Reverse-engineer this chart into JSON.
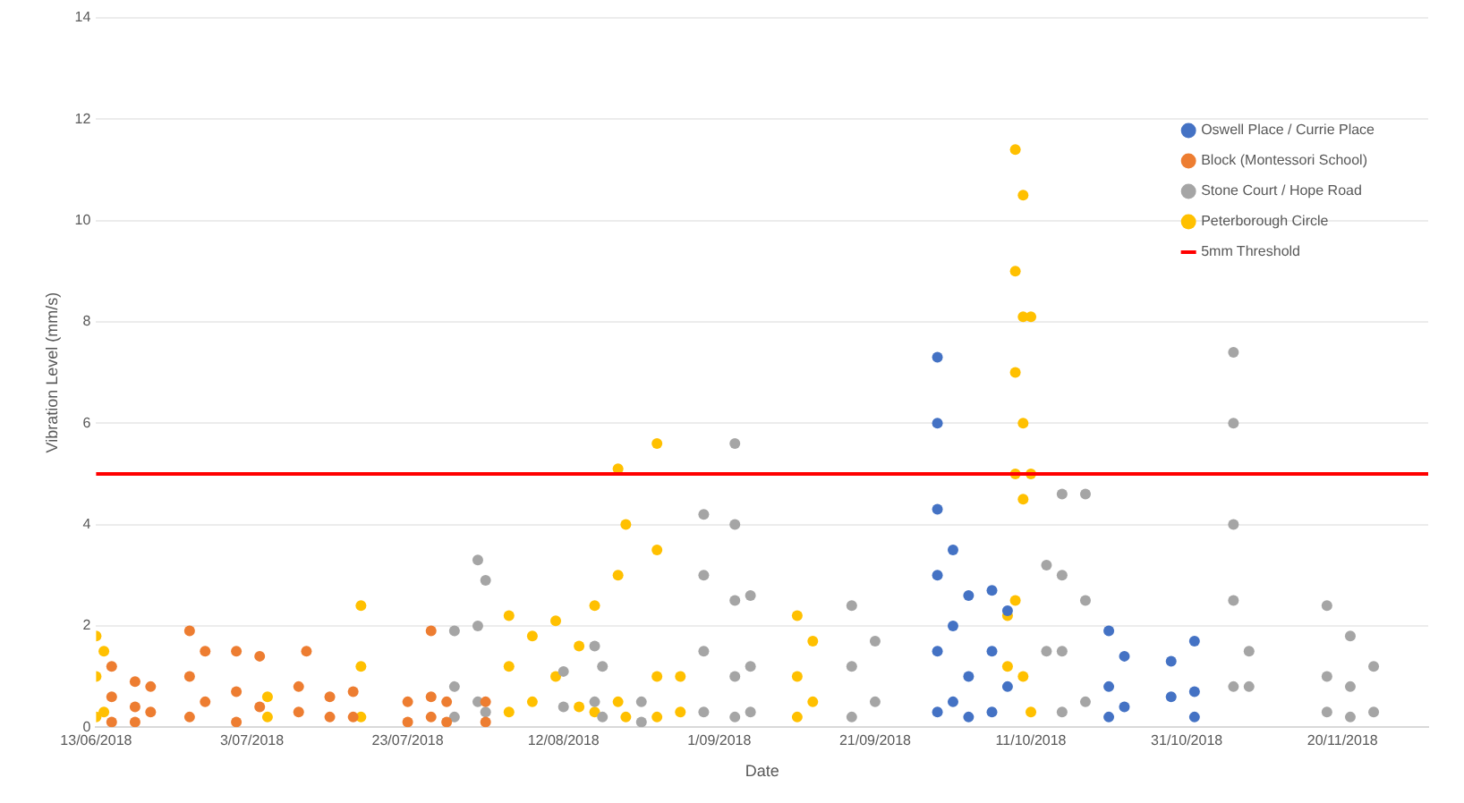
{
  "chart_data": {
    "type": "scatter",
    "xlabel": "Date",
    "ylabel": "Vibration Level (mm/s)",
    "legend": "top right",
    "marker": "circle",
    "grid": "y",
    "xlim": [
      "2018-06-13",
      "2018-12-01"
    ],
    "xticks": [
      {
        "value": "2018-06-13",
        "label": "13/06/2018"
      },
      {
        "value": "2018-07-03",
        "label": "3/07/2018"
      },
      {
        "value": "2018-07-23",
        "label": "23/07/2018"
      },
      {
        "value": "2018-08-12",
        "label": "12/08/2018"
      },
      {
        "value": "2018-09-01",
        "label": "1/09/2018"
      },
      {
        "value": "2018-09-21",
        "label": "21/09/2018"
      },
      {
        "value": "2018-10-11",
        "label": "11/10/2018"
      },
      {
        "value": "2018-10-31",
        "label": "31/10/2018"
      },
      {
        "value": "2018-11-20",
        "label": "20/11/2018"
      }
    ],
    "ylim": [
      0,
      14
    ],
    "yticks": [
      0,
      2,
      4,
      6,
      8,
      10,
      12,
      14
    ],
    "ref_lines": [
      {
        "axis": "y",
        "value": 5,
        "label": "5mm Threshold",
        "color": "#ff0000"
      }
    ],
    "series": [
      {
        "name": "Oswell Place / Currie Place",
        "color": "#4472c4",
        "x": [
          "2018-09-29",
          "2018-09-29",
          "2018-09-29",
          "2018-09-29",
          "2018-09-29",
          "2018-09-29",
          "2018-10-01",
          "2018-10-01",
          "2018-10-01",
          "2018-10-03",
          "2018-10-03",
          "2018-10-03",
          "2018-10-06",
          "2018-10-06",
          "2018-10-06",
          "2018-10-08",
          "2018-10-08",
          "2018-10-21",
          "2018-10-21",
          "2018-10-21",
          "2018-10-23",
          "2018-10-23",
          "2018-10-29",
          "2018-10-29",
          "2018-11-01",
          "2018-11-01",
          "2018-11-01"
        ],
        "values": [
          7.3,
          6,
          4.3,
          3,
          1.5,
          0.3,
          3.5,
          2,
          0.5,
          2.6,
          1,
          0.2,
          2.7,
          1.5,
          0.3,
          2.3,
          0.8,
          1.9,
          0.8,
          0.2,
          1.4,
          0.4,
          1.3,
          0.6,
          1.7,
          0.7,
          0.2
        ]
      },
      {
        "name": "Block (Montessori School)",
        "color": "#ed7d31",
        "x": [
          "2018-06-15",
          "2018-06-15",
          "2018-06-15",
          "2018-06-18",
          "2018-06-18",
          "2018-06-18",
          "2018-06-20",
          "2018-06-20",
          "2018-06-25",
          "2018-06-25",
          "2018-06-25",
          "2018-06-27",
          "2018-06-27",
          "2018-07-01",
          "2018-07-01",
          "2018-07-01",
          "2018-07-04",
          "2018-07-04",
          "2018-07-09",
          "2018-07-09",
          "2018-07-10",
          "2018-07-13",
          "2018-07-13",
          "2018-07-16",
          "2018-07-16",
          "2018-07-23",
          "2018-07-23",
          "2018-07-26",
          "2018-07-26",
          "2018-07-26",
          "2018-07-28",
          "2018-07-28",
          "2018-08-02",
          "2018-08-02"
        ],
        "values": [
          1.2,
          0.6,
          0.1,
          0.9,
          0.4,
          0.1,
          0.8,
          0.3,
          1.9,
          1,
          0.2,
          1.5,
          0.5,
          1.5,
          0.7,
          0.1,
          1.4,
          0.4,
          0.8,
          0.3,
          1.5,
          0.6,
          0.2,
          0.7,
          0.2,
          0.5,
          0.1,
          1.9,
          0.6,
          0.2,
          0.5,
          0.1,
          0.5,
          0.1
        ]
      },
      {
        "name": "Stone Court / Hope Road",
        "color": "#a5a5a5",
        "x": [
          "2018-07-29",
          "2018-07-29",
          "2018-07-29",
          "2018-08-01",
          "2018-08-01",
          "2018-08-01",
          "2018-08-02",
          "2018-08-02",
          "2018-08-12",
          "2018-08-12",
          "2018-08-16",
          "2018-08-16",
          "2018-08-17",
          "2018-08-17",
          "2018-08-22",
          "2018-08-22",
          "2018-08-30",
          "2018-08-30",
          "2018-08-30",
          "2018-08-30",
          "2018-09-03",
          "2018-09-03",
          "2018-09-03",
          "2018-09-03",
          "2018-09-03",
          "2018-09-05",
          "2018-09-05",
          "2018-09-05",
          "2018-09-18",
          "2018-09-18",
          "2018-09-18",
          "2018-09-21",
          "2018-09-21",
          "2018-10-13",
          "2018-10-13",
          "2018-10-15",
          "2018-10-15",
          "2018-10-15",
          "2018-10-15",
          "2018-10-18",
          "2018-10-18",
          "2018-10-18",
          "2018-11-06",
          "2018-11-06",
          "2018-11-06",
          "2018-11-06",
          "2018-11-06",
          "2018-11-08",
          "2018-11-08",
          "2018-11-18",
          "2018-11-18",
          "2018-11-18",
          "2018-11-21",
          "2018-11-21",
          "2018-11-21",
          "2018-11-24",
          "2018-11-24"
        ],
        "values": [
          1.9,
          0.8,
          0.2,
          3.3,
          2,
          0.5,
          2.9,
          0.3,
          1.1,
          0.4,
          1.6,
          0.5,
          1.2,
          0.2,
          0.5,
          0.1,
          4.2,
          3,
          1.5,
          0.3,
          5.6,
          4,
          2.5,
          1,
          0.2,
          2.6,
          1.2,
          0.3,
          2.4,
          1.2,
          0.2,
          1.7,
          0.5,
          3.2,
          1.5,
          4.6,
          3,
          1.5,
          0.3,
          4.6,
          2.5,
          0.5,
          7.4,
          6,
          4,
          2.5,
          0.8,
          1.5,
          0.8,
          2.4,
          1,
          0.3,
          1.8,
          0.8,
          0.2,
          1.2,
          0.3
        ]
      },
      {
        "name": "Peterborough Circle",
        "color": "#ffc000",
        "x": [
          "2018-06-13",
          "2018-06-13",
          "2018-06-13",
          "2018-06-14",
          "2018-06-14",
          "2018-07-05",
          "2018-07-05",
          "2018-07-17",
          "2018-07-17",
          "2018-07-17",
          "2018-08-05",
          "2018-08-05",
          "2018-08-05",
          "2018-08-08",
          "2018-08-08",
          "2018-08-11",
          "2018-08-11",
          "2018-08-14",
          "2018-08-14",
          "2018-08-16",
          "2018-08-16",
          "2018-08-19",
          "2018-08-19",
          "2018-08-19",
          "2018-08-20",
          "2018-08-20",
          "2018-08-24",
          "2018-08-24",
          "2018-08-24",
          "2018-08-24",
          "2018-08-27",
          "2018-08-27",
          "2018-09-11",
          "2018-09-11",
          "2018-09-11",
          "2018-09-13",
          "2018-09-13",
          "2018-10-08",
          "2018-10-08",
          "2018-10-09",
          "2018-10-09",
          "2018-10-09",
          "2018-10-09",
          "2018-10-09",
          "2018-10-10",
          "2018-10-10",
          "2018-10-10",
          "2018-10-10",
          "2018-10-10",
          "2018-10-11",
          "2018-10-11",
          "2018-10-11"
        ],
        "values": [
          1.8,
          1,
          0.2,
          1.5,
          0.3,
          0.6,
          0.2,
          2.4,
          1.2,
          0.2,
          2.2,
          1.2,
          0.3,
          1.8,
          0.5,
          2.1,
          1,
          1.6,
          0.4,
          2.4,
          0.3,
          5.1,
          3,
          0.5,
          4,
          0.2,
          5.6,
          3.5,
          1,
          0.2,
          1,
          0.3,
          2.2,
          1,
          0.2,
          1.7,
          0.5,
          2.2,
          1.2,
          11.4,
          9,
          7,
          5,
          2.5,
          10.5,
          8.1,
          6,
          4.5,
          1,
          8.1,
          5,
          0.3
        ]
      }
    ]
  }
}
